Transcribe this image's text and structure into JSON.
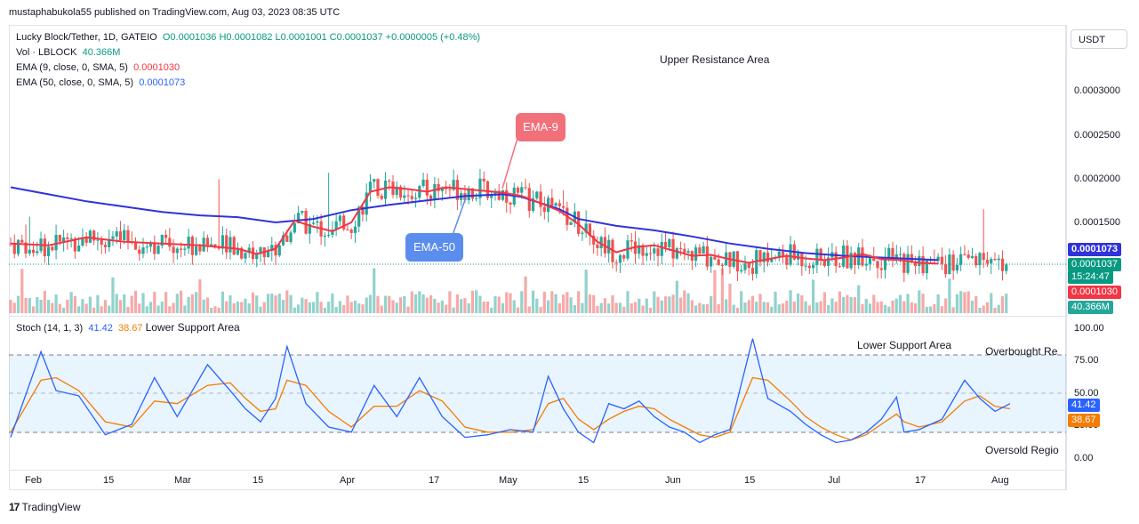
{
  "header": {
    "published": "mustaphabukola55 published on TradingView.com, Aug 03, 2023 08:35 UTC"
  },
  "legend": {
    "symbol": "Lucky Block/Tether, 1D, GATEIO",
    "ohlc": "O0.0001036  H0.0001082  L0.0001001  C0.0001037  +0.0000005 (+0.48%)",
    "vol_label": "Vol · LBLOCK",
    "vol_value": "40.366M",
    "ema9_label": "EMA (9, close, 0, SMA, 5)",
    "ema9_value": "0.0001030",
    "ema50_label": "EMA (50, close, 0, SMA, 5)",
    "ema50_value": "0.0001073",
    "stoch_label": "Stoch (14, 1, 3)",
    "stoch_k": "41.42",
    "stoch_d": "38.67"
  },
  "currency_button": "USDT",
  "annotations": {
    "upper_resistance": "Upper Resistance Area",
    "lower_support_main": "Lower Support Area",
    "lower_support_stoch": "Lower Support Area",
    "overbought": "Overbought Re",
    "oversold": "Oversold Regio",
    "ema9_callout": "EMA-9",
    "ema50_callout": "EMA-50"
  },
  "price_tags": {
    "ema50": "0.0001073",
    "last": "0.0001037",
    "countdown": "15:24:47",
    "ema9": "0.0001030",
    "volume": "40.366M",
    "stoch_k": "41.42",
    "stoch_d": "38.67"
  },
  "colors": {
    "up": "#26a69a",
    "down": "#ef5350",
    "ema9": "#f23645",
    "ema50": "#3033d9",
    "stoch_k": "#2962ff",
    "stoch_d": "#f57c00",
    "callout_red": "#f2707a",
    "callout_blue": "#5b8def"
  },
  "footer": {
    "brand": "TradingView",
    "logo": "17"
  },
  "chart_data": [
    {
      "type": "candlestick",
      "title": "Lucky Block/Tether, 1D, GATEIO",
      "x_ticks": [
        "Feb",
        "15",
        "Mar",
        "15",
        "Apr",
        "17",
        "May",
        "15",
        "Jun",
        "15",
        "Jul",
        "17",
        "Aug"
      ],
      "y_ticks": [
        "0.0003000",
        "0.0002500",
        "0.0002000",
        "0.0001500"
      ],
      "ylim": [
        7e-05,
        0.00034
      ],
      "last_close": 0.0001037,
      "series": [
        {
          "name": "EMA (9, close, 0, SMA, 5)",
          "points": [
            [
              0,
              0.000126
            ],
            [
              10,
              0.000124
            ],
            [
              20,
              0.000133
            ],
            [
              30,
              0.000128
            ],
            [
              40,
              0.000126
            ],
            [
              50,
              0.000124
            ],
            [
              60,
              0.00012
            ],
            [
              65,
              0.000114
            ],
            [
              70,
              0.00012
            ],
            [
              75,
              0.000152
            ],
            [
              80,
              0.000145
            ],
            [
              85,
              0.00014
            ],
            [
              90,
              0.00015
            ],
            [
              95,
              0.000185
            ],
            [
              100,
              0.00019
            ],
            [
              105,
              0.000188
            ],
            [
              110,
              0.000185
            ],
            [
              115,
              0.00019
            ],
            [
              120,
              0.000188
            ],
            [
              125,
              0.000186
            ],
            [
              130,
              0.000184
            ],
            [
              135,
              0.00018
            ],
            [
              140,
              0.000172
            ],
            [
              145,
              0.000163
            ],
            [
              150,
              0.000148
            ],
            [
              155,
              0.000128
            ],
            [
              160,
              0.000116
            ],
            [
              165,
              0.000122
            ],
            [
              170,
              0.000124
            ],
            [
              175,
              0.000118
            ],
            [
              180,
              0.000112
            ],
            [
              185,
              0.000113
            ],
            [
              190,
              0.000108
            ],
            [
              195,
              0.000104
            ],
            [
              200,
              0.000108
            ],
            [
              205,
              0.000112
            ],
            [
              210,
              0.000109
            ],
            [
              215,
              0.000107
            ],
            [
              220,
              0.00011
            ],
            [
              225,
              0.000114
            ],
            [
              230,
              0.000108
            ],
            [
              235,
              0.000107
            ],
            [
              240,
              0.000104
            ],
            [
              245,
              0.000103
            ]
          ]
        },
        {
          "name": "EMA (50, close, 0, SMA, 5)",
          "points": [
            [
              0,
              0.00019
            ],
            [
              10,
              0.000182
            ],
            [
              20,
              0.000174
            ],
            [
              30,
              0.000168
            ],
            [
              40,
              0.000162
            ],
            [
              50,
              0.000158
            ],
            [
              60,
              0.000156
            ],
            [
              70,
              0.00015
            ],
            [
              80,
              0.000154
            ],
            [
              90,
              0.000164
            ],
            [
              100,
              0.00017
            ],
            [
              110,
              0.000175
            ],
            [
              120,
              0.00018
            ],
            [
              125,
              0.000181
            ],
            [
              130,
              0.000182
            ],
            [
              135,
              0.000179
            ],
            [
              140,
              0.000172
            ],
            [
              145,
              0.000165
            ],
            [
              150,
              0.000154
            ],
            [
              160,
              0.000146
            ],
            [
              170,
              0.000141
            ],
            [
              180,
              0.000134
            ],
            [
              190,
              0.000126
            ],
            [
              200,
              0.00012
            ],
            [
              210,
              0.000115
            ],
            [
              220,
              0.000112
            ],
            [
              230,
              0.00011
            ],
            [
              240,
              0.000108
            ],
            [
              245,
              0.000107
            ]
          ]
        }
      ]
    },
    {
      "type": "line",
      "title": "Stoch (14, 1, 3)",
      "y_ticks": [
        "100.00",
        "75.00",
        "50.00",
        "25.00",
        "0.00"
      ],
      "ylim": [
        0,
        100
      ],
      "bands": [
        80,
        50,
        20
      ],
      "series": [
        {
          "name": "%K",
          "points": [
            [
              0,
              16
            ],
            [
              8,
              82
            ],
            [
              12,
              52
            ],
            [
              18,
              48
            ],
            [
              25,
              18
            ],
            [
              32,
              26
            ],
            [
              38,
              62
            ],
            [
              44,
              32
            ],
            [
              52,
              72
            ],
            [
              58,
              52
            ],
            [
              62,
              38
            ],
            [
              66,
              28
            ],
            [
              70,
              46
            ],
            [
              73,
              86
            ],
            [
              78,
              42
            ],
            [
              84,
              24
            ],
            [
              90,
              20
            ],
            [
              96,
              56
            ],
            [
              102,
              32
            ],
            [
              108,
              62
            ],
            [
              114,
              32
            ],
            [
              120,
              16
            ],
            [
              126,
              18
            ],
            [
              132,
              22
            ],
            [
              138,
              20
            ],
            [
              142,
              63
            ],
            [
              146,
              38
            ],
            [
              150,
              20
            ],
            [
              154,
              12
            ],
            [
              158,
              42
            ],
            [
              162,
              38
            ],
            [
              166,
              44
            ],
            [
              170,
              32
            ],
            [
              174,
              24
            ],
            [
              178,
              20
            ],
            [
              182,
              12
            ],
            [
              186,
              18
            ],
            [
              190,
              22
            ],
            [
              196,
              92
            ],
            [
              200,
              46
            ],
            [
              206,
              36
            ],
            [
              210,
              26
            ],
            [
              214,
              18
            ],
            [
              218,
              12
            ],
            [
              222,
              14
            ],
            [
              226,
              20
            ],
            [
              230,
              30
            ],
            [
              234,
              47
            ],
            [
              236,
              20
            ],
            [
              240,
              22
            ],
            [
              246,
              30
            ],
            [
              252,
              60
            ],
            [
              256,
              46
            ],
            [
              260,
              36
            ],
            [
              264,
              42
            ]
          ]
        },
        {
          "name": "%D",
          "points": [
            [
              0,
              20
            ],
            [
              8,
              60
            ],
            [
              12,
              62
            ],
            [
              18,
              52
            ],
            [
              25,
              28
            ],
            [
              32,
              24
            ],
            [
              38,
              44
            ],
            [
              44,
              42
            ],
            [
              52,
              56
            ],
            [
              58,
              58
            ],
            [
              62,
              46
            ],
            [
              66,
              36
            ],
            [
              70,
              38
            ],
            [
              73,
              60
            ],
            [
              78,
              56
            ],
            [
              84,
              36
            ],
            [
              90,
              24
            ],
            [
              96,
              40
            ],
            [
              102,
              40
            ],
            [
              108,
              52
            ],
            [
              114,
              44
            ],
            [
              120,
              24
            ],
            [
              126,
              20
            ],
            [
              132,
              20
            ],
            [
              138,
              22
            ],
            [
              142,
              42
            ],
            [
              146,
              46
            ],
            [
              150,
              30
            ],
            [
              154,
              22
            ],
            [
              158,
              30
            ],
            [
              162,
              36
            ],
            [
              166,
              40
            ],
            [
              170,
              38
            ],
            [
              174,
              30
            ],
            [
              178,
              24
            ],
            [
              182,
              18
            ],
            [
              186,
              16
            ],
            [
              190,
              20
            ],
            [
              196,
              62
            ],
            [
              200,
              60
            ],
            [
              206,
              44
            ],
            [
              210,
              32
            ],
            [
              214,
              24
            ],
            [
              218,
              18
            ],
            [
              222,
              14
            ],
            [
              226,
              18
            ],
            [
              230,
              26
            ],
            [
              234,
              34
            ],
            [
              236,
              28
            ],
            [
              240,
              24
            ],
            [
              246,
              28
            ],
            [
              252,
              44
            ],
            [
              256,
              48
            ],
            [
              260,
              40
            ],
            [
              264,
              38
            ]
          ]
        }
      ]
    }
  ]
}
